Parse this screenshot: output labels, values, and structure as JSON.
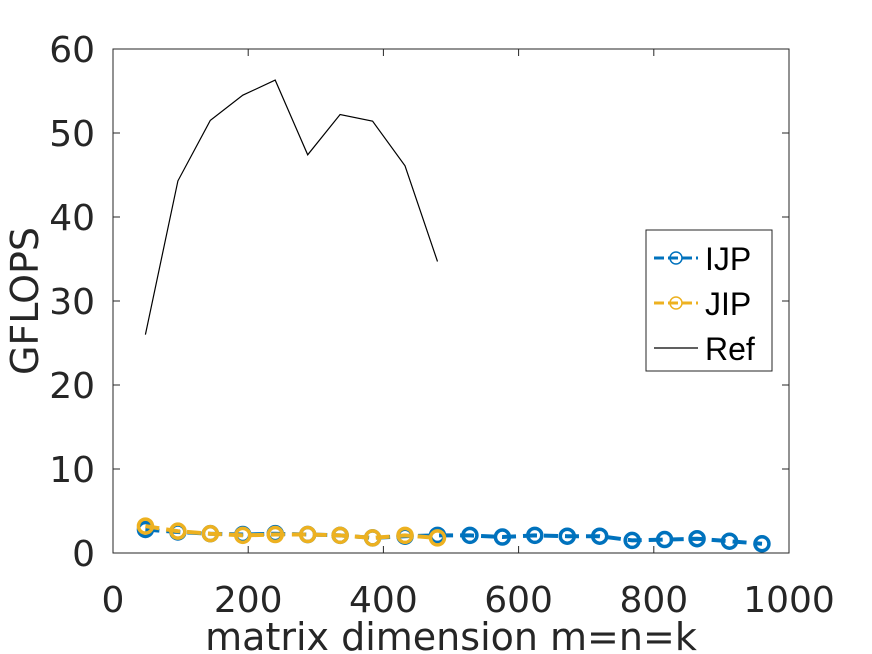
{
  "chart_data": {
    "type": "line",
    "xlabel": "matrix dimension m=n=k",
    "ylabel": "GFLOPS",
    "xlim": [
      0,
      1000
    ],
    "ylim": [
      0,
      60
    ],
    "xticks": [
      "0",
      "200",
      "400",
      "600",
      "800",
      "1000"
    ],
    "yticks": [
      "0",
      "10",
      "20",
      "30",
      "40",
      "50",
      "60"
    ],
    "grid": false,
    "legend_position": "right",
    "series": [
      {
        "name": "IJP",
        "color": "#0072BD",
        "style": "dashed",
        "marker": "circle",
        "x": [
          48,
          96,
          144,
          192,
          240,
          288,
          336,
          384,
          432,
          480,
          528,
          576,
          624,
          672,
          720,
          768,
          816,
          864,
          912,
          960
        ],
        "y": [
          2.8,
          2.5,
          2.3,
          2.2,
          2.3,
          2.2,
          2.1,
          1.8,
          2.0,
          2.1,
          2.1,
          1.9,
          2.1,
          2.0,
          2.0,
          1.5,
          1.6,
          1.7,
          1.4,
          1.1
        ]
      },
      {
        "name": "JIP",
        "color": "#EDB120",
        "style": "dashed",
        "marker": "circle",
        "x": [
          48,
          96,
          144,
          192,
          240,
          288,
          336,
          384,
          432,
          480
        ],
        "y": [
          3.2,
          2.6,
          2.3,
          2.1,
          2.2,
          2.2,
          2.1,
          1.8,
          2.1,
          1.8
        ]
      },
      {
        "name": "Ref",
        "color": "#000000",
        "style": "solid",
        "marker": "none",
        "x": [
          48,
          96,
          144,
          192,
          240,
          288,
          336,
          384,
          432,
          480
        ],
        "y": [
          26.0,
          44.3,
          51.5,
          54.5,
          56.3,
          47.4,
          52.2,
          51.4,
          46.1,
          34.7
        ]
      }
    ]
  }
}
